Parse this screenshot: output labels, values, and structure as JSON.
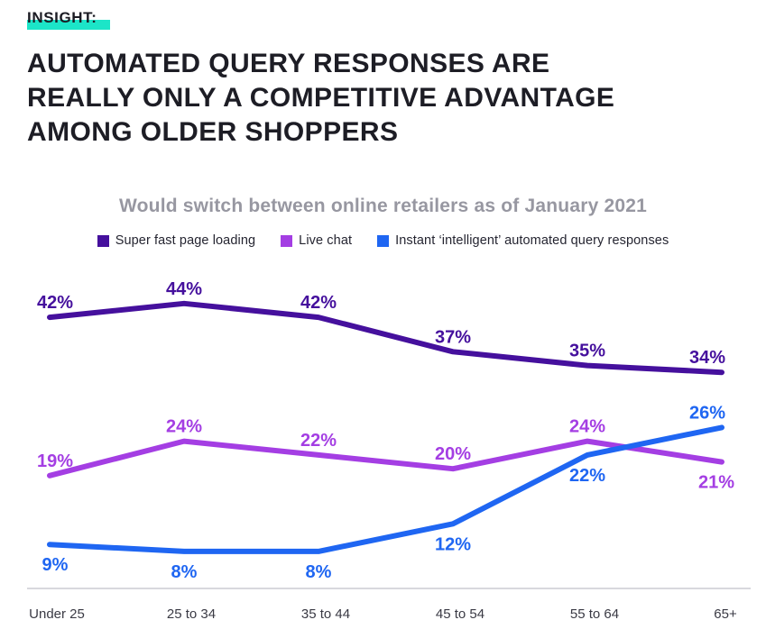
{
  "insight_label": "INSIGHT:",
  "heading": {
    "lines": [
      "AUTOMATED QUERY RESPONSES ARE",
      "REALLY ONLY A COMPETITIVE ADVANTAGE",
      "AMONG OLDER SHOPPERS"
    ]
  },
  "colors": {
    "highlight_teal": "#1CE5C8",
    "insight_text": "#1B1B23",
    "heading_text": "#1D1D25",
    "chart_title_text": "#9797A1",
    "legend_text": "#252531",
    "axis_line": "#D8D8DD",
    "axis_label_text": "#3A3A44"
  },
  "chart_data": {
    "type": "line",
    "title": "Would switch between online retailers as of January 2021",
    "categories": [
      "Under 25",
      "25 to 34",
      "35 to 44",
      "45 to 54",
      "55 to 64",
      "65+"
    ],
    "series": [
      {
        "name": "Super fast page loading",
        "color": "#45109D",
        "values": [
          42,
          44,
          42,
          37,
          35,
          34
        ],
        "label_side": [
          "above",
          "above",
          "above",
          "above",
          "above",
          "above"
        ]
      },
      {
        "name": "Live chat",
        "color": "#A43EE3",
        "values": [
          19,
          24,
          22,
          20,
          24,
          21
        ],
        "label_side": [
          "above",
          "above",
          "above",
          "above",
          "above",
          "below"
        ]
      },
      {
        "name": "Instant ‘intelligent’ automated query responses",
        "color": "#1F66F2",
        "values": [
          9,
          8,
          8,
          12,
          22,
          26
        ],
        "label_side": [
          "below",
          "below",
          "below",
          "below",
          "below",
          "above"
        ]
      }
    ],
    "value_suffix": "%",
    "xlabel": "",
    "ylabel": "",
    "ylim": [
      0,
      50
    ],
    "grid": false,
    "legend_position": "top",
    "data_labels": true
  }
}
